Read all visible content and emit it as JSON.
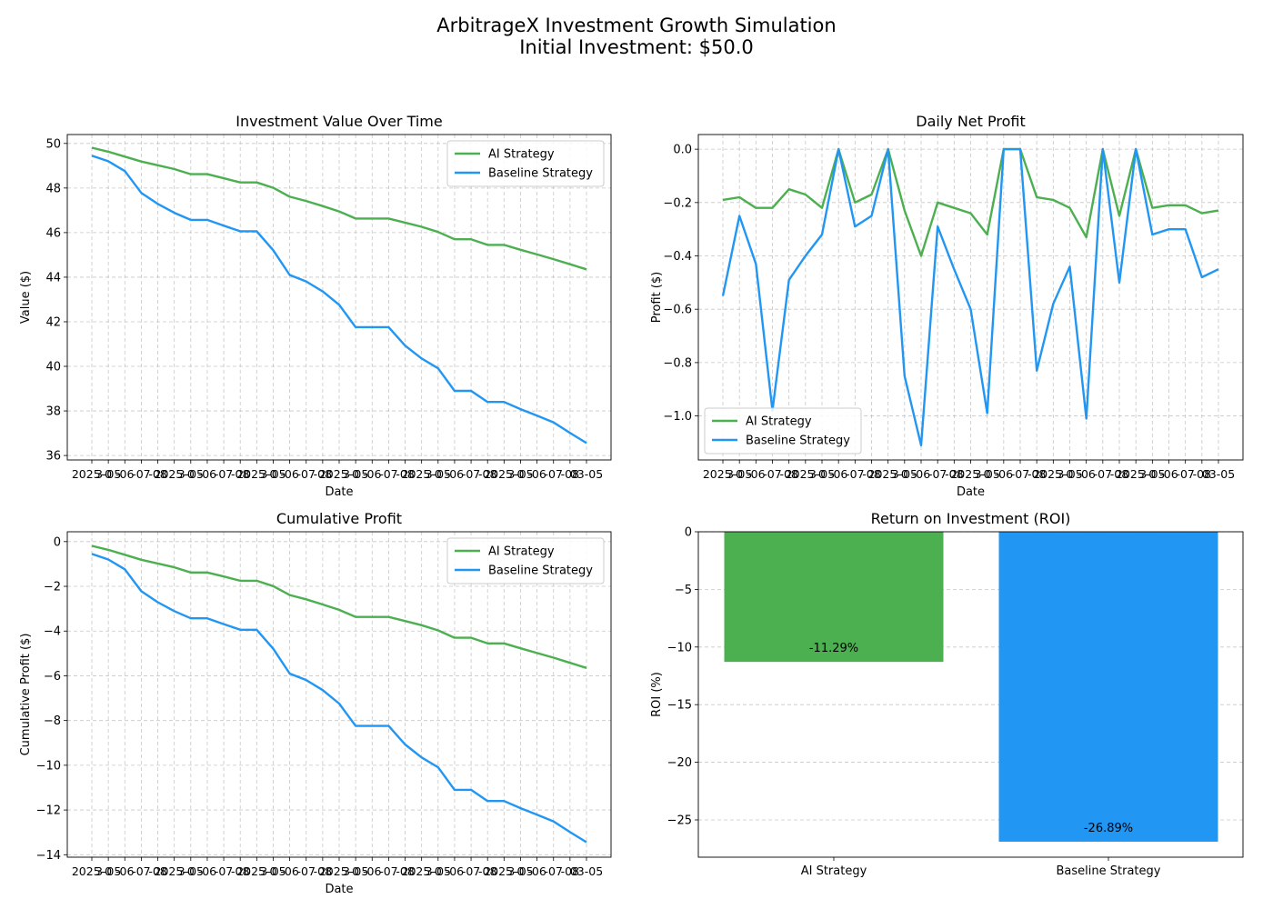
{
  "figure": {
    "title_line1": "ArbitrageX Investment Growth Simulation",
    "title_line2": "Initial Investment: $50.0"
  },
  "colors": {
    "ai": "#4caf50",
    "baseline": "#2196f3",
    "grid": "#b0b0b0",
    "axes": "#000000"
  },
  "chart_data": [
    {
      "type": "line",
      "title": "Investment Value Over Time",
      "xlabel": "Date",
      "ylabel": "Value ($)",
      "ylim": [
        35.8,
        50.4
      ],
      "yticks": [
        36,
        38,
        40,
        42,
        44,
        46,
        48,
        50
      ],
      "grid": true,
      "legend": "upper right",
      "x_tick_labels_overlapping": "2025-03-05 (31 daily date labels, illegible due to overlap)",
      "series": [
        {
          "name": "AI Strategy",
          "color": "#4caf50",
          "values": [
            49.81,
            49.63,
            49.41,
            49.19,
            49.02,
            48.85,
            48.62,
            48.62,
            48.44,
            48.25,
            48.25,
            48.01,
            47.61,
            47.42,
            47.19,
            46.95,
            46.63,
            46.63,
            46.63,
            46.45,
            46.26,
            46.03,
            45.7,
            45.7,
            45.45,
            45.45,
            45.23,
            45.02,
            44.81,
            44.58,
            44.35
          ]
        },
        {
          "name": "Baseline Strategy",
          "color": "#2196f3",
          "values": [
            49.45,
            49.2,
            48.76,
            47.78,
            47.29,
            46.89,
            46.57,
            46.57,
            46.31,
            46.06,
            46.06,
            45.21,
            44.1,
            43.81,
            43.36,
            42.76,
            41.76,
            41.76,
            41.76,
            40.93,
            40.35,
            39.91,
            38.9,
            38.9,
            38.4,
            38.4,
            38.08,
            37.79,
            37.49,
            37.01,
            36.56
          ]
        }
      ]
    },
    {
      "type": "line",
      "title": "Daily Net Profit",
      "xlabel": "Date",
      "ylabel": "Profit ($)",
      "ylim": [
        -1.165,
        0.055
      ],
      "yticks": [
        0.0,
        -0.2,
        -0.4,
        -0.6,
        -0.8,
        -1.0
      ],
      "ytick_labels": [
        "0.0",
        "−0.2",
        "−0.4",
        "−0.6",
        "−0.8",
        "−1.0"
      ],
      "grid": true,
      "legend": "lower left",
      "x_tick_labels_overlapping": "2025-03-05 (31 daily date labels, illegible due to overlap)",
      "series": [
        {
          "name": "AI Strategy",
          "color": "#4caf50",
          "values": [
            -0.19,
            -0.18,
            -0.22,
            -0.22,
            -0.15,
            -0.17,
            -0.22,
            0.0,
            -0.2,
            -0.17,
            0.0,
            -0.23,
            -0.4,
            -0.2,
            -0.22,
            -0.24,
            -0.32,
            0.0,
            0.0,
            -0.18,
            -0.19,
            -0.22,
            -0.33,
            0.0,
            -0.25,
            0.0,
            -0.22,
            -0.21,
            -0.21,
            -0.24,
            -0.23
          ]
        },
        {
          "name": "Baseline Strategy",
          "color": "#2196f3",
          "values": [
            -0.55,
            -0.25,
            -0.43,
            -0.98,
            -0.49,
            -0.4,
            -0.32,
            0.0,
            -0.29,
            -0.25,
            0.0,
            -0.85,
            -1.11,
            -0.29,
            -0.45,
            -0.6,
            -0.99,
            0.0,
            0.0,
            -0.83,
            -0.58,
            -0.44,
            -1.01,
            0.0,
            -0.5,
            0.0,
            -0.32,
            -0.3,
            -0.3,
            -0.48,
            -0.45
          ]
        }
      ]
    },
    {
      "type": "line",
      "title": "Cumulative Profit",
      "xlabel": "Date",
      "ylabel": "Cumulative Profit ($)",
      "ylim": [
        -14.11,
        0.44
      ],
      "yticks": [
        0,
        -2,
        -4,
        -6,
        -8,
        -10,
        -12,
        -14
      ],
      "ytick_labels": [
        "0",
        "−2",
        "−4",
        "−6",
        "−8",
        "−10",
        "−12",
        "−14"
      ],
      "grid": true,
      "legend": "upper right",
      "x_tick_labels_overlapping": "2025-03-05 (31 daily date labels, illegible due to overlap)",
      "series": [
        {
          "name": "AI Strategy",
          "color": "#4caf50",
          "values": [
            -0.19,
            -0.37,
            -0.59,
            -0.81,
            -0.98,
            -1.15,
            -1.38,
            -1.38,
            -1.56,
            -1.75,
            -1.75,
            -1.99,
            -2.39,
            -2.58,
            -2.81,
            -3.05,
            -3.37,
            -3.37,
            -3.37,
            -3.55,
            -3.74,
            -3.97,
            -4.3,
            -4.3,
            -4.55,
            -4.55,
            -4.77,
            -4.98,
            -5.19,
            -5.42,
            -5.65
          ]
        },
        {
          "name": "Baseline Strategy",
          "color": "#2196f3",
          "values": [
            -0.55,
            -0.8,
            -1.24,
            -2.22,
            -2.71,
            -3.11,
            -3.43,
            -3.43,
            -3.69,
            -3.94,
            -3.94,
            -4.79,
            -5.9,
            -6.19,
            -6.64,
            -7.24,
            -8.24,
            -8.24,
            -8.24,
            -9.07,
            -9.65,
            -10.09,
            -11.1,
            -11.1,
            -11.6,
            -11.6,
            -11.92,
            -12.21,
            -12.51,
            -12.99,
            -13.44
          ]
        }
      ]
    },
    {
      "type": "bar",
      "title": "Return on Investment (ROI)",
      "xlabel": "",
      "ylabel": "ROI (%)",
      "ylim": [
        -28.235,
        0
      ],
      "yticks": [
        0,
        -5,
        -10,
        -15,
        -20,
        -25
      ],
      "ytick_labels": [
        "0",
        "−5",
        "−10",
        "−15",
        "−20",
        "−25"
      ],
      "grid": true,
      "categories": [
        "AI Strategy",
        "Baseline Strategy"
      ],
      "values": [
        -11.29,
        -26.89
      ],
      "data_labels": [
        "-11.29%",
        "-26.89%"
      ],
      "bar_colors": [
        "#4caf50",
        "#2196f3"
      ]
    }
  ]
}
